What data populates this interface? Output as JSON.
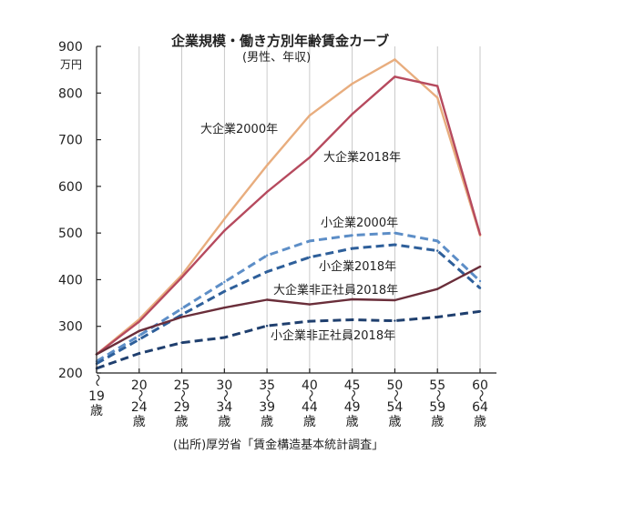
{
  "chart_data": {
    "type": "line",
    "title": "企業規模・働き方別年齢賃金カーブ",
    "subtitle": "(男性、年収)",
    "ylabel": "万円",
    "ylim": [
      200,
      900
    ],
    "yticks": [
      200,
      300,
      400,
      500,
      600,
      700,
      800,
      900
    ],
    "grid": "vertical",
    "categories": [
      {
        "top": "",
        "bottom": "19",
        "unit": "歳"
      },
      {
        "top": "20",
        "bottom": "24",
        "unit": "歳"
      },
      {
        "top": "25",
        "bottom": "29",
        "unit": "歳"
      },
      {
        "top": "30",
        "bottom": "34",
        "unit": "歳"
      },
      {
        "top": "35",
        "bottom": "39",
        "unit": "歳"
      },
      {
        "top": "40",
        "bottom": "44",
        "unit": "歳"
      },
      {
        "top": "45",
        "bottom": "49",
        "unit": "歳"
      },
      {
        "top": "50",
        "bottom": "54",
        "unit": "歳"
      },
      {
        "top": "55",
        "bottom": "59",
        "unit": "歳"
      },
      {
        "top": "60",
        "bottom": "64",
        "unit": "歳"
      }
    ],
    "range_mark": "〜",
    "series": [
      {
        "name": "大企業2000年",
        "color": "#e8ad7e",
        "style": "solid",
        "values": [
          240,
          315,
          410,
          530,
          645,
          752,
          820,
          872,
          790,
          495
        ]
      },
      {
        "name": "大企業2018年",
        "color": "#b64a5e",
        "style": "solid",
        "values": [
          240,
          310,
          405,
          505,
          588,
          662,
          755,
          835,
          815,
          497
        ]
      },
      {
        "name": "小企業2000年",
        "color": "#5d8ec7",
        "style": "dashed",
        "values": [
          225,
          280,
          338,
          395,
          452,
          483,
          495,
          500,
          483,
          397
        ]
      },
      {
        "name": "小企業2018年",
        "color": "#2e5f9a",
        "style": "dashed",
        "values": [
          220,
          272,
          325,
          375,
          417,
          448,
          467,
          475,
          462,
          382
        ]
      },
      {
        "name": "大企業非正社員2018年",
        "color": "#6a2e3a",
        "style": "solid",
        "values": [
          240,
          290,
          320,
          340,
          357,
          347,
          358,
          356,
          380,
          428
        ]
      },
      {
        "name": "小企業非正社員2018年",
        "color": "#1f3f6e",
        "style": "dashed",
        "values": [
          210,
          242,
          265,
          276,
          301,
          311,
          314,
          312,
          320,
          332
        ]
      }
    ],
    "source": "(出所)厚労省「賃金構造基本統計調査」"
  }
}
